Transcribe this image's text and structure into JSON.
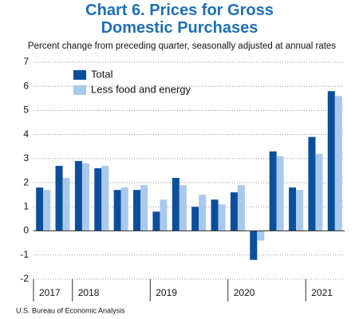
{
  "chart_data": {
    "type": "bar",
    "title": "Chart 6. Prices for Gross Domestic Purchases",
    "subtitle": "Percent change from preceding quarter, seasonally adjusted at annual rates",
    "source": "U.S. Bureau of Economic Analysis",
    "categories": [
      "2017",
      null,
      "2018",
      null,
      null,
      null,
      "2019",
      null,
      null,
      null,
      "2020",
      null,
      null,
      null,
      "2021",
      null
    ],
    "series": [
      {
        "name": "Total",
        "color": "#0b4f9c",
        "values": [
          1.8,
          2.7,
          2.9,
          2.6,
          1.7,
          1.7,
          0.8,
          2.2,
          1.0,
          1.3,
          1.6,
          -1.2,
          3.3,
          1.8,
          3.9,
          5.8
        ]
      },
      {
        "name": "Less food and energy",
        "color": "#a9c9ec",
        "values": [
          1.7,
          2.2,
          2.8,
          2.7,
          1.8,
          1.9,
          1.3,
          1.9,
          1.5,
          1.1,
          1.9,
          -0.4,
          3.1,
          1.7,
          3.2,
          5.6
        ]
      }
    ],
    "ylim": [
      -2,
      7
    ],
    "yticks": [
      -2,
      -1,
      0,
      1,
      2,
      3,
      4,
      5,
      6,
      7
    ],
    "grid": true,
    "legend": "top-left"
  }
}
